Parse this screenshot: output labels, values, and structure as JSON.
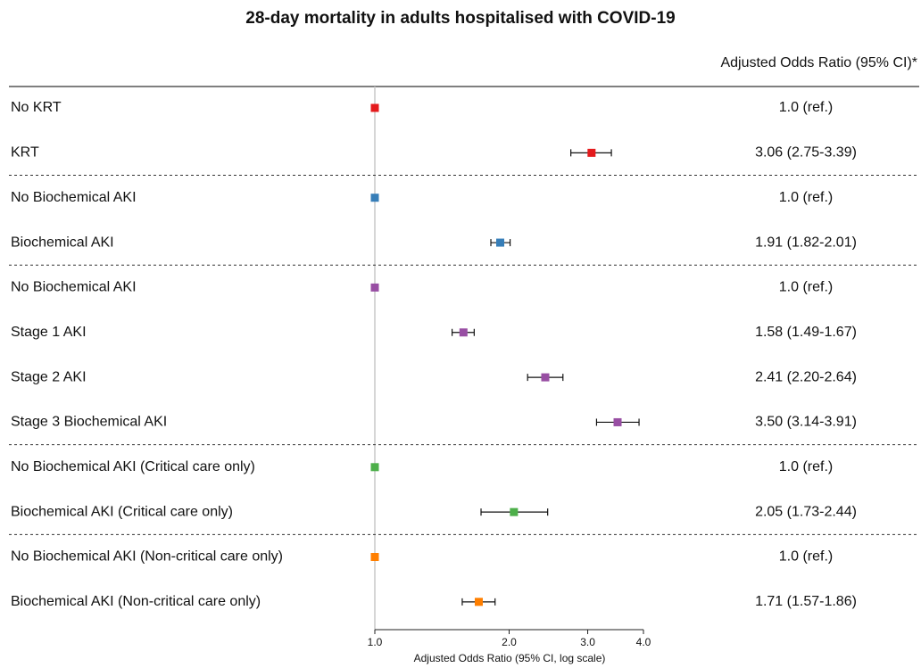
{
  "chart_data": {
    "type": "forest",
    "title": "28-day mortality in adults hospitalised with COVID-19",
    "column_header": "Adjusted Odds Ratio (95% CI)*",
    "xlabel": "Adjusted Odds Ratio (95% CI, log scale)",
    "xlog": true,
    "xlim": [
      1.0,
      4.0
    ],
    "xticks": [
      {
        "value": 1,
        "label": "1.0"
      },
      {
        "value": 2,
        "label": "2.0"
      },
      {
        "value": 3,
        "label": "3.0"
      },
      {
        "value": 4,
        "label": "4.0"
      }
    ],
    "categories": [
      "No KRT",
      "KRT",
      "No Biochemical AKI",
      "Biochemical AKI",
      "No Biochemical AKI",
      "Stage 1 AKI",
      "Stage 2 AKI",
      "Stage 3 Biochemical AKI",
      "No Biochemical AKI (Critical care only)",
      "Biochemical AKI (Critical care only)",
      "No Biochemical AKI (Non-critical care only)",
      "Biochemical AKI (Non-critical care only)"
    ],
    "groups": [
      0,
      0,
      1,
      1,
      2,
      2,
      2,
      2,
      3,
      3,
      4,
      4
    ],
    "values": [
      1.0,
      3.06,
      1.0,
      1.91,
      1.0,
      1.58,
      2.41,
      3.5,
      1.0,
      2.05,
      1.0,
      1.71
    ],
    "lower": [
      null,
      2.75,
      null,
      1.82,
      null,
      1.49,
      2.2,
      3.14,
      null,
      1.73,
      null,
      1.57
    ],
    "upper": [
      null,
      3.39,
      null,
      2.01,
      null,
      1.67,
      2.64,
      3.91,
      null,
      2.44,
      null,
      1.86
    ],
    "value_labels": [
      "1.0 (ref.)",
      "3.06 (2.75-3.39)",
      "1.0 (ref.)",
      "1.91 (1.82-2.01)",
      "1.0 (ref.)",
      "1.58 (1.49-1.67)",
      "2.41 (2.20-2.64)",
      "3.50 (3.14-3.91)",
      "1.0 (ref.)",
      "2.05 (1.73-2.44)",
      "1.0 (ref.)",
      "1.71 (1.57-1.86)"
    ],
    "colors": [
      "#e41a1c",
      "#e41a1c",
      "#377eb8",
      "#377eb8",
      "#984ea3",
      "#984ea3",
      "#984ea3",
      "#984ea3",
      "#4daf4a",
      "#4daf4a",
      "#ff7f00",
      "#ff7f00"
    ]
  }
}
